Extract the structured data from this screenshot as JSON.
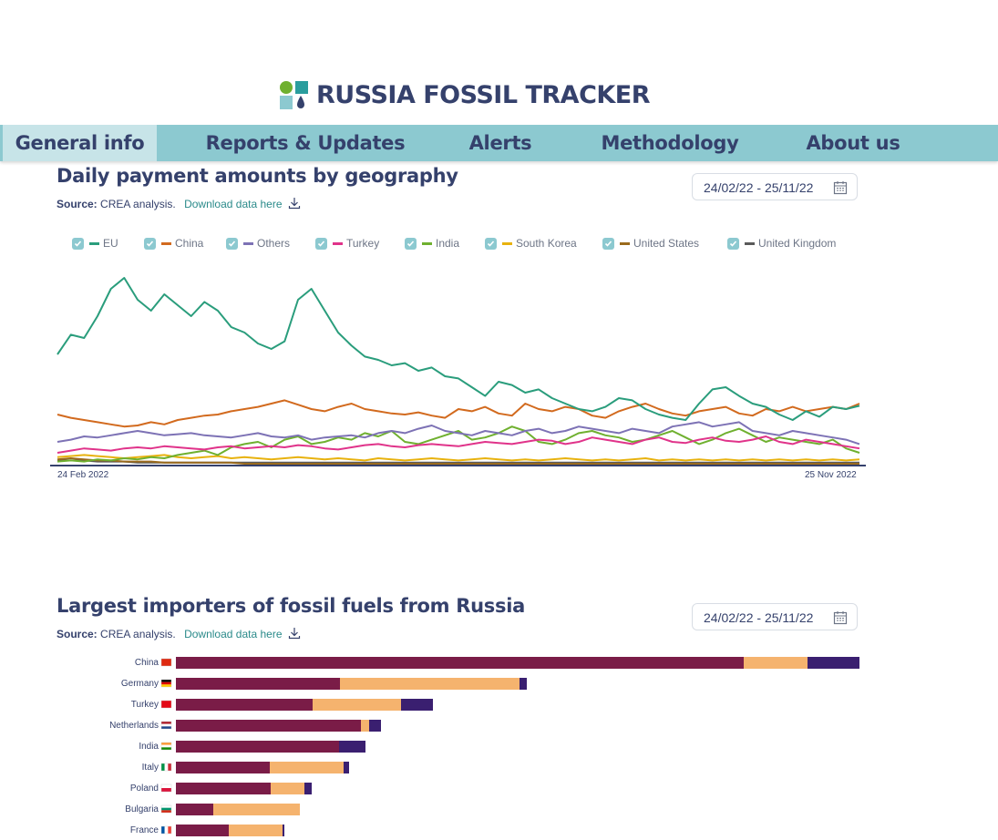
{
  "header": {
    "title": "RUSSIA FOSSIL TRACKER"
  },
  "nav": {
    "tabs": [
      "General info",
      "Reports & Updates",
      "Alerts",
      "Methodology",
      "About us"
    ],
    "active": 0
  },
  "chart1": {
    "title": "Daily payment amounts by geography",
    "source_label": "Source:",
    "source_text": "CREA analysis.",
    "download_text": "Download data here",
    "date_range": "24/02/22 - 25/11/22"
  },
  "chart2": {
    "title": "Largest importers of fossil fuels from Russia",
    "source_label": "Source:",
    "source_text": "CREA analysis.",
    "download_text": "Download data here",
    "date_range": "24/02/22 - 25/11/22"
  },
  "chart_data": [
    {
      "type": "line",
      "x_range": [
        "24 Feb 2022",
        "25 Nov 2022"
      ],
      "x_tick_labels": [
        "24 Feb 2022",
        "25 Nov 2022"
      ],
      "legend_placement": "top",
      "series": [
        {
          "name": "EU",
          "color": "#2a9d7c",
          "checked": true,
          "values": [
            100,
            118,
            115,
            135,
            160,
            170,
            150,
            140,
            155,
            145,
            135,
            148,
            140,
            125,
            120,
            110,
            105,
            112,
            150,
            160,
            140,
            120,
            108,
            98,
            95,
            90,
            92,
            85,
            88,
            80,
            78,
            70,
            62,
            75,
            72,
            65,
            68,
            60,
            55,
            50,
            48,
            52,
            60,
            58,
            50,
            45,
            42,
            40,
            55,
            68,
            70,
            62,
            55,
            52,
            45,
            40,
            48,
            43,
            52,
            50,
            53
          ]
        },
        {
          "name": "China",
          "color": "#d26a1e",
          "checked": true,
          "values": [
            45,
            42,
            40,
            38,
            36,
            34,
            35,
            38,
            36,
            40,
            42,
            44,
            45,
            48,
            50,
            52,
            55,
            58,
            54,
            50,
            48,
            52,
            55,
            50,
            48,
            46,
            45,
            47,
            44,
            42,
            50,
            48,
            52,
            46,
            44,
            55,
            50,
            48,
            52,
            50,
            44,
            42,
            48,
            52,
            55,
            50,
            46,
            44,
            48,
            50,
            52,
            46,
            44,
            50,
            48,
            52,
            48,
            50,
            52,
            50,
            55
          ]
        },
        {
          "name": "Others",
          "color": "#7d72b5",
          "checked": true,
          "values": [
            20,
            22,
            25,
            24,
            26,
            28,
            30,
            28,
            26,
            27,
            28,
            26,
            25,
            24,
            26,
            28,
            25,
            24,
            26,
            22,
            24,
            25,
            26,
            24,
            28,
            30,
            28,
            32,
            35,
            30,
            28,
            26,
            30,
            28,
            26,
            30,
            32,
            28,
            30,
            34,
            32,
            30,
            28,
            32,
            30,
            28,
            34,
            36,
            38,
            34,
            36,
            38,
            30,
            28,
            26,
            30,
            28,
            26,
            24,
            22,
            18
          ]
        },
        {
          "name": "Turkey",
          "color": "#e0338a",
          "checked": true,
          "values": [
            10,
            12,
            14,
            13,
            12,
            14,
            15,
            14,
            16,
            15,
            14,
            13,
            15,
            16,
            14,
            15,
            16,
            15,
            17,
            16,
            14,
            13,
            15,
            17,
            18,
            16,
            15,
            17,
            18,
            17,
            16,
            18,
            20,
            19,
            18,
            20,
            22,
            21,
            18,
            20,
            24,
            22,
            20,
            18,
            22,
            24,
            20,
            19,
            22,
            24,
            21,
            20,
            22,
            25,
            20,
            18,
            22,
            20,
            18,
            16,
            14
          ]
        },
        {
          "name": "India",
          "color": "#6fb02f",
          "checked": true,
          "values": [
            2,
            3,
            2,
            4,
            3,
            5,
            4,
            6,
            5,
            8,
            10,
            12,
            8,
            15,
            18,
            20,
            15,
            22,
            25,
            18,
            20,
            24,
            22,
            28,
            25,
            30,
            20,
            18,
            22,
            26,
            30,
            22,
            24,
            28,
            34,
            30,
            20,
            18,
            22,
            28,
            30,
            26,
            24,
            20,
            22,
            26,
            30,
            24,
            18,
            22,
            28,
            32,
            26,
            20,
            24,
            22,
            20,
            18,
            22,
            14,
            10
          ]
        },
        {
          "name": "South Korea",
          "color": "#e8b20e",
          "checked": true,
          "values": [
            6,
            7,
            8,
            7,
            6,
            5,
            6,
            7,
            8,
            6,
            5,
            6,
            7,
            5,
            6,
            5,
            4,
            5,
            6,
            5,
            4,
            5,
            4,
            3,
            5,
            4,
            3,
            4,
            5,
            4,
            3,
            4,
            5,
            4,
            3,
            4,
            3,
            4,
            5,
            4,
            3,
            4,
            3,
            4,
            5,
            3,
            4,
            3,
            4,
            3,
            4,
            3,
            4,
            3,
            4,
            3,
            4,
            3,
            4,
            3,
            4
          ]
        },
        {
          "name": "United States",
          "color": "#9a6a1c",
          "checked": true,
          "values": [
            4,
            5,
            4,
            3,
            3,
            2,
            2,
            2,
            1,
            1,
            1,
            1,
            1,
            1,
            0,
            0,
            0,
            0,
            0,
            0,
            0,
            0,
            0,
            0,
            0,
            0,
            0,
            0,
            0,
            0,
            0,
            0,
            0,
            0,
            0,
            0,
            0,
            0,
            0,
            0,
            0,
            0,
            0,
            0,
            0,
            0,
            0,
            0,
            0,
            0,
            0,
            0,
            0,
            0,
            0,
            0,
            0,
            0,
            0,
            0,
            0
          ]
        },
        {
          "name": "United Kingdom",
          "color": "#5a5a5a",
          "checked": true,
          "values": [
            3,
            3,
            3,
            2,
            2,
            2,
            1,
            1,
            1,
            1,
            1,
            1,
            1,
            1,
            1,
            1,
            1,
            1,
            1,
            1,
            1,
            1,
            1,
            1,
            1,
            1,
            1,
            1,
            1,
            1,
            1,
            1,
            1,
            1,
            1,
            1,
            1,
            1,
            1,
            1,
            1,
            1,
            1,
            1,
            1,
            1,
            1,
            1,
            1,
            1,
            1,
            1,
            1,
            1,
            1,
            1,
            1,
            1,
            1,
            1,
            1
          ]
        }
      ]
    },
    {
      "type": "bar",
      "orientation": "horizontal",
      "stacked": true,
      "categories": [
        "China",
        "Germany",
        "Turkey",
        "Netherlands",
        "India",
        "Italy",
        "Poland",
        "Bulgaria",
        "France"
      ],
      "flags": [
        "cn",
        "de",
        "tr",
        "nl",
        "in",
        "it",
        "pl",
        "bg",
        "fr"
      ],
      "colors": [
        "#7a1c47",
        "#f5b36e",
        "#3a1f70"
      ],
      "series": [
        {
          "values": [
            62.3,
            18.0,
            15.0,
            20.3,
            17.9,
            10.3,
            10.4,
            4.1,
            5.8
          ]
        },
        {
          "values": [
            7.0,
            19.7,
            9.7,
            0.9,
            0.0,
            8.1,
            3.7,
            9.5,
            5.9
          ]
        },
        {
          "values": [
            5.7,
            0.8,
            3.5,
            1.3,
            2.9,
            0.6,
            0.8,
            0.0,
            0.2
          ]
        }
      ]
    }
  ]
}
